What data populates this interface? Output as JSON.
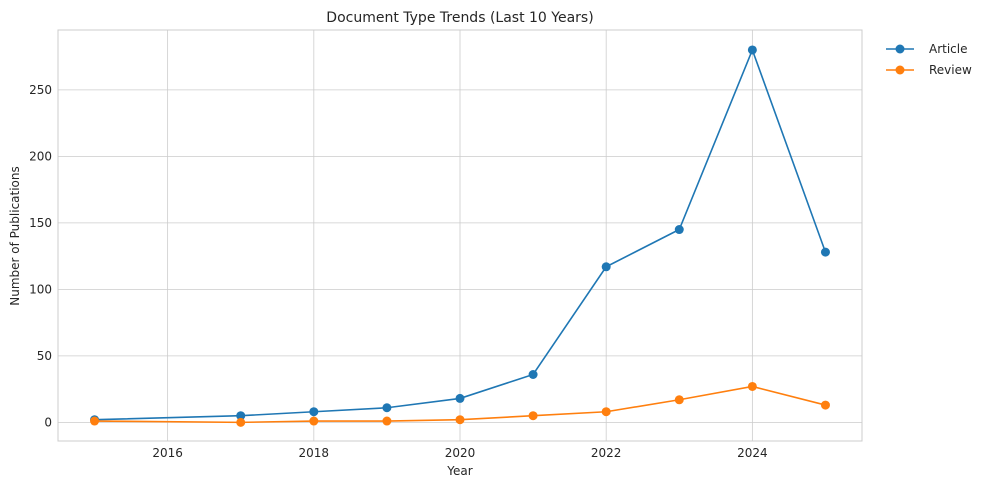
{
  "chart_data": {
    "type": "line",
    "title": "Document Type Trends (Last 10 Years)",
    "xlabel": "Year",
    "ylabel": "Number of Publications",
    "xlim": [
      2014.5,
      2025.5
    ],
    "ylim": [
      -14,
      295
    ],
    "xticks": [
      2016,
      2018,
      2020,
      2022,
      2024
    ],
    "yticks": [
      0,
      50,
      100,
      150,
      200,
      250
    ],
    "grid": true,
    "legend_position": "outside-top-right",
    "series": [
      {
        "name": "Article",
        "color": "#1f77b4",
        "x": [
          2015,
          2017,
          2018,
          2019,
          2020,
          2021,
          2022,
          2023,
          2024,
          2025
        ],
        "y": [
          2,
          5,
          8,
          11,
          18,
          36,
          117,
          145,
          280,
          128
        ]
      },
      {
        "name": "Review",
        "color": "#ff7f0e",
        "x": [
          2015,
          2017,
          2018,
          2019,
          2020,
          2021,
          2022,
          2023,
          2024,
          2025
        ],
        "y": [
          1,
          0,
          1,
          1,
          2,
          5,
          8,
          17,
          27,
          13
        ]
      }
    ]
  }
}
